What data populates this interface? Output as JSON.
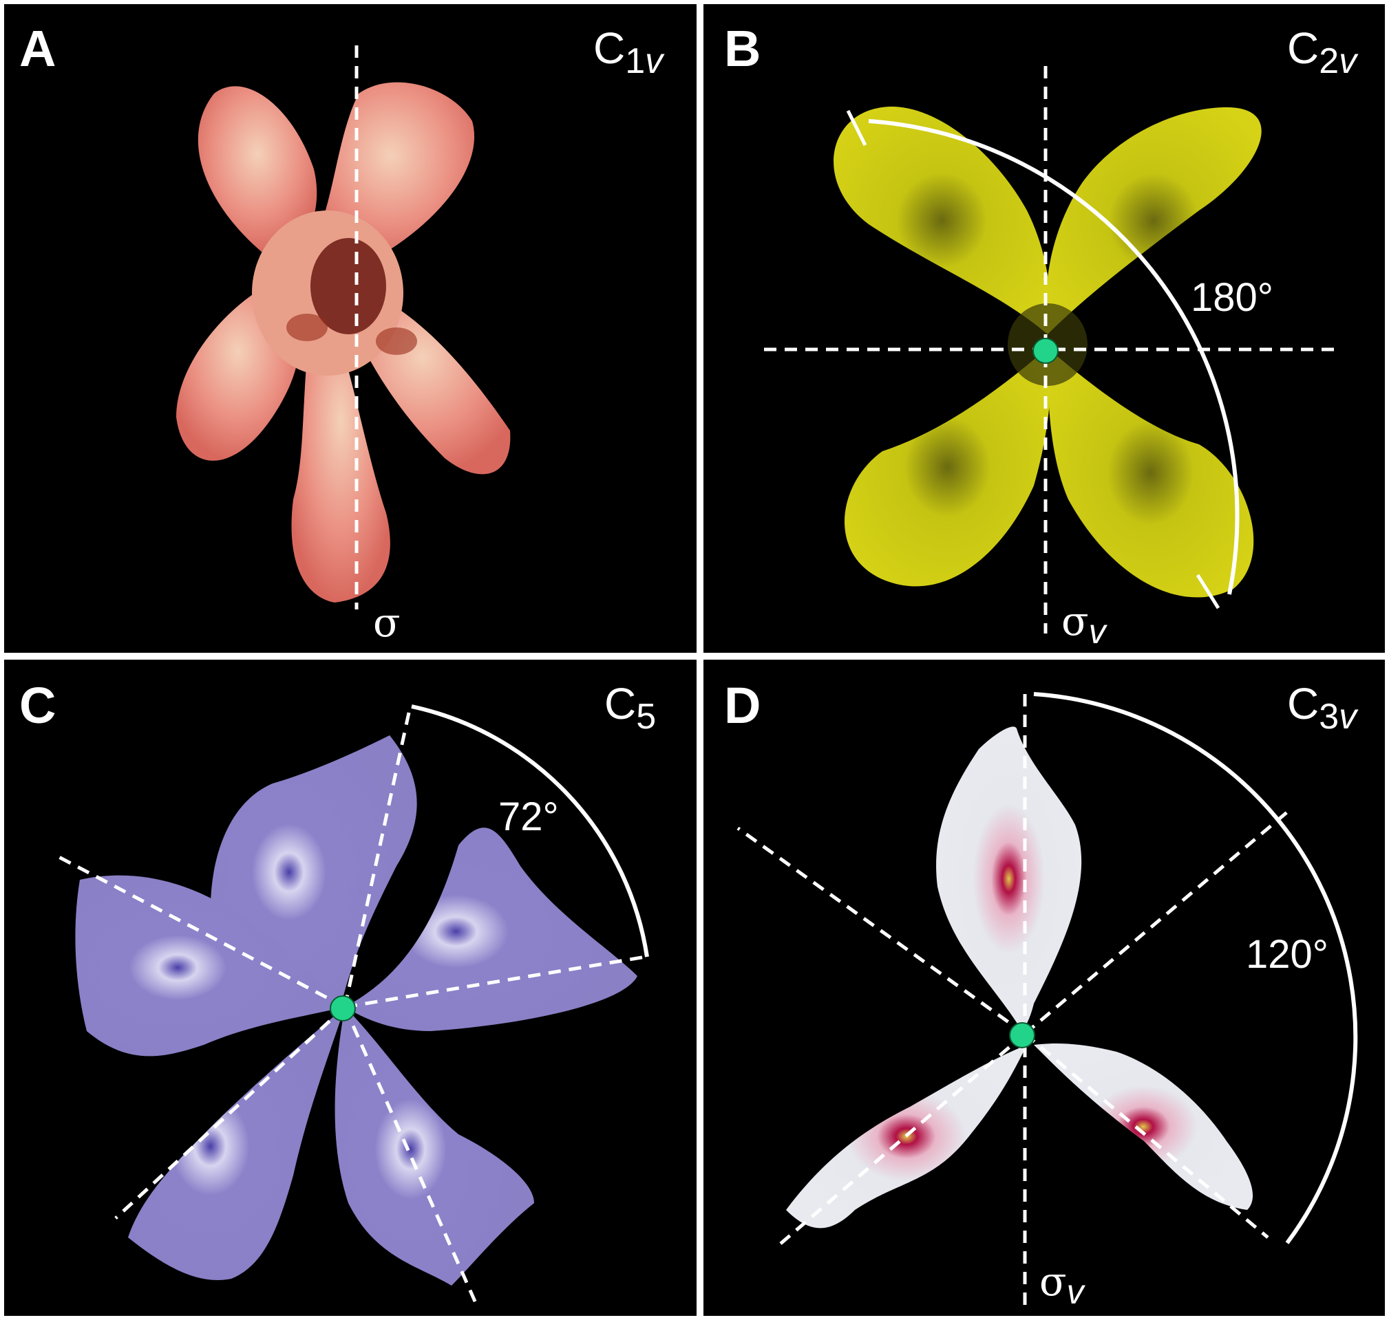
{
  "panels": [
    {
      "id": "A",
      "letter": "A",
      "group": "C",
      "group_sub": "1",
      "group_sub_italic": "v",
      "mirror": "σ",
      "mirror_sub": "",
      "angle": "",
      "flower_color": "#e9857a"
    },
    {
      "id": "B",
      "letter": "B",
      "group": "C",
      "group_sub": "2",
      "group_sub_italic": "v",
      "mirror": "σ",
      "mirror_sub": "v",
      "angle": "180°",
      "flower_color": "#c7c90f"
    },
    {
      "id": "C",
      "letter": "C",
      "group": "C",
      "group_sub": "5",
      "group_sub_italic": "",
      "mirror": "",
      "mirror_sub": "",
      "angle": "72°",
      "flower_color": "#8a7fc8"
    },
    {
      "id": "D",
      "letter": "D",
      "group": "C",
      "group_sub": "3",
      "group_sub_italic": "v",
      "mirror": "σ",
      "mirror_sub": "v",
      "angle": "120°",
      "flower_color": "#eef0f4"
    }
  ],
  "colors": {
    "background": "#000000",
    "line": "#ffffff",
    "center_dot": "#22d48a",
    "frame": "#ffffff"
  }
}
